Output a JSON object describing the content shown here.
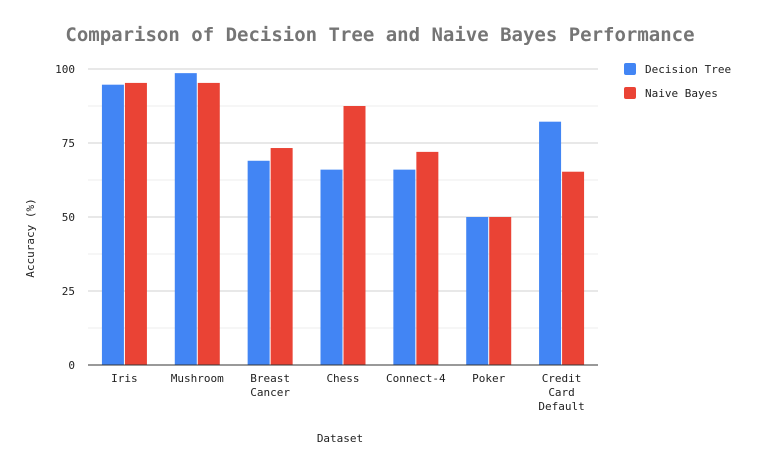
{
  "chart_data": {
    "type": "bar",
    "title": "Comparison of Decision Tree and Naive Bayes Performance",
    "xlabel": "Dataset",
    "ylabel": "Accuracy (%)",
    "ylim": [
      0,
      100
    ],
    "yticks": [
      0,
      25,
      50,
      75,
      100
    ],
    "grid": true,
    "legend_position": "top-right",
    "categories": [
      [
        "Iris"
      ],
      [
        "Mushroom"
      ],
      [
        "Breast",
        "Cancer"
      ],
      [
        "Chess"
      ],
      [
        "Connect-4"
      ],
      [
        "Poker"
      ],
      [
        "Credit",
        "Card",
        "Default"
      ]
    ],
    "series": [
      {
        "name": "Decision Tree",
        "color": "#4285F4",
        "values": [
          94.7,
          98.6,
          69.0,
          66.0,
          66.0,
          50.0,
          82.2
        ]
      },
      {
        "name": "Naive Bayes",
        "color": "#EA4335",
        "values": [
          95.3,
          95.3,
          73.3,
          87.5,
          72.0,
          50.0,
          65.3
        ]
      }
    ]
  }
}
